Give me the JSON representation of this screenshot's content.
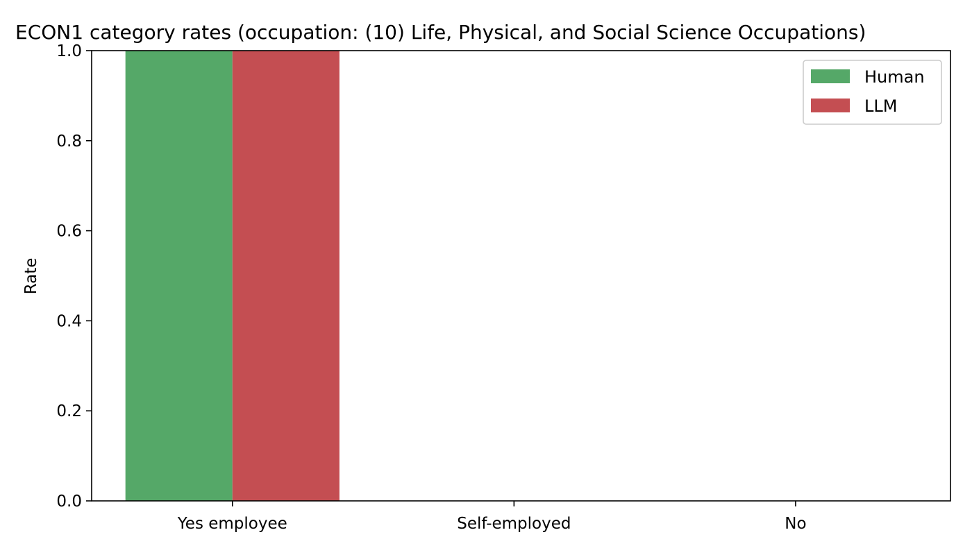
{
  "chart_data": {
    "type": "bar",
    "title": "ECON1 category rates (occupation: (10) Life, Physical, and Social Science Occupations)",
    "xlabel": "",
    "ylabel": "Rate",
    "categories": [
      "Yes employee",
      "Self-employed",
      "No"
    ],
    "series": [
      {
        "name": "Human",
        "color": "#55a868",
        "values": [
          1.0,
          0.0,
          0.0
        ]
      },
      {
        "name": "LLM",
        "color": "#c44e52",
        "values": [
          1.0,
          0.0,
          0.0
        ]
      }
    ],
    "ylim": [
      0,
      1.0
    ],
    "yticks": [
      "0.0",
      "0.2",
      "0.4",
      "0.6",
      "0.8",
      "1.0"
    ],
    "grid": false,
    "legend_position": "top-right"
  }
}
